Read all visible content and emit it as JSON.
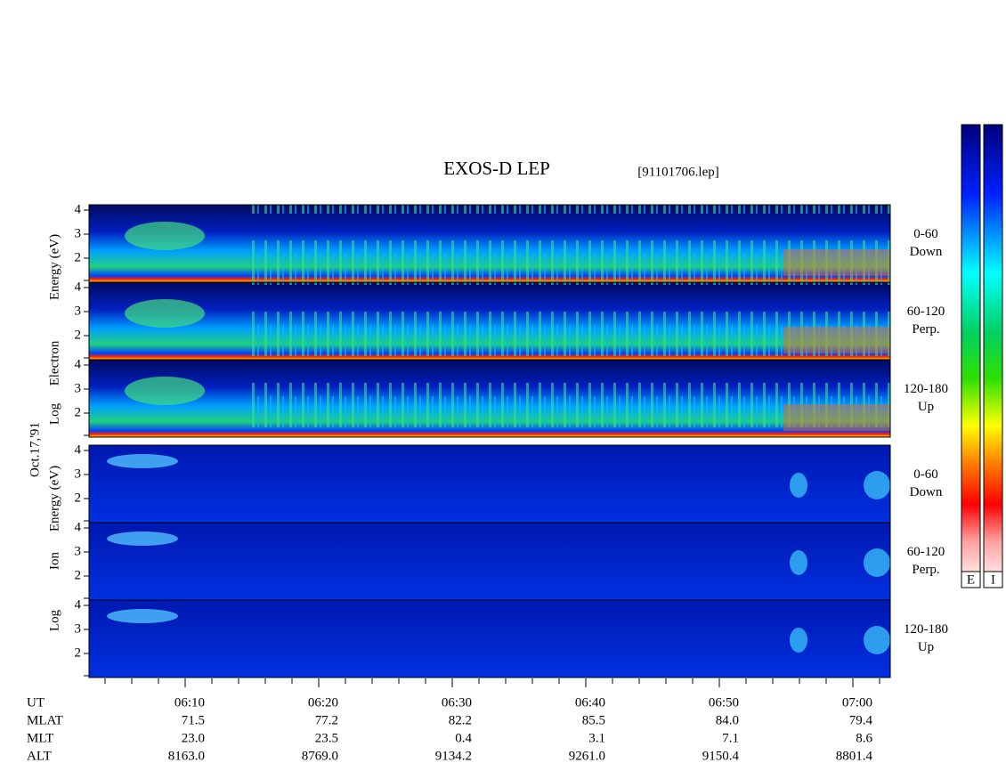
{
  "title": "EXOS-D LEP",
  "file": "[91101706.lep]",
  "date": "Oct.17,'91",
  "groups": [
    {
      "ylabel": [
        "Log",
        "Electron",
        "Energy (eV)"
      ],
      "panels": [
        [
          "0-60",
          "Down"
        ],
        [
          "60-120",
          "Perp."
        ],
        [
          "120-180",
          "Up"
        ]
      ]
    },
    {
      "ylabel": [
        "Log",
        "Ion",
        "Energy (eV)"
      ],
      "panels": [
        [
          "0-60",
          "Down"
        ],
        [
          "60-120",
          "Perp."
        ],
        [
          "120-180",
          "Up"
        ]
      ]
    }
  ],
  "yticks": [
    2,
    3,
    4
  ],
  "ephemeris": [
    {
      "label": "UT",
      "values": [
        "06:10",
        "06:20",
        "06:30",
        "06:40",
        "06:50",
        "07:00"
      ]
    },
    {
      "label": "MLAT",
      "values": [
        "71.5",
        "77.2",
        "82.2",
        "85.5",
        "84.0",
        "79.4"
      ]
    },
    {
      "label": "MLT",
      "values": [
        "23.0",
        "23.5",
        "0.4",
        "3.1",
        "7.1",
        "8.6"
      ]
    },
    {
      "label": "ALT",
      "values": [
        "8163.0",
        "8769.0",
        "9134.2",
        "9261.0",
        "9150.4",
        "8801.4"
      ]
    }
  ],
  "colorbars": [
    "E",
    "I"
  ]
}
